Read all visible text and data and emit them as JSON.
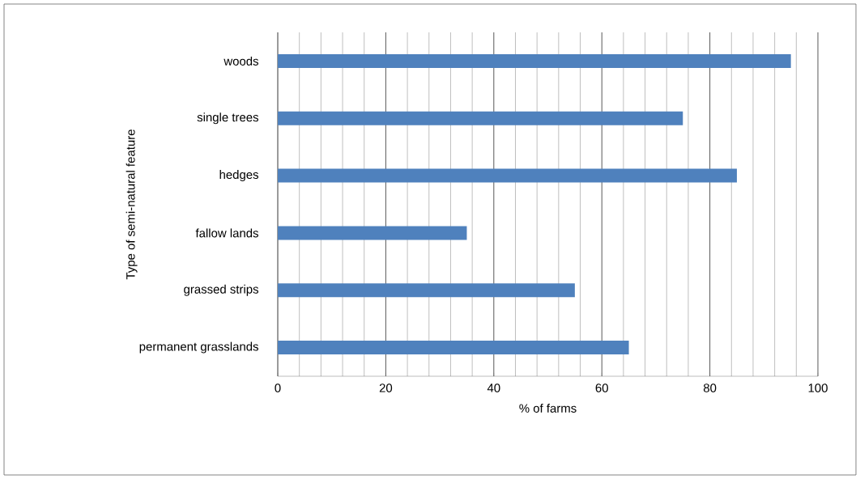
{
  "chart_data": {
    "type": "bar",
    "orientation": "horizontal",
    "xlabel": "% of farms",
    "ylabel": "Type of semi-natural feature",
    "categories": [
      "woods",
      "single trees",
      "hedges",
      "fallow lands",
      "grassed strips",
      "permanent grasslands"
    ],
    "values": [
      95,
      75,
      85,
      35,
      55,
      65
    ],
    "color": "#4f81bd",
    "xlim": [
      0,
      100
    ],
    "xticks": [
      0,
      20,
      40,
      60,
      80,
      100
    ],
    "grid": "x"
  }
}
